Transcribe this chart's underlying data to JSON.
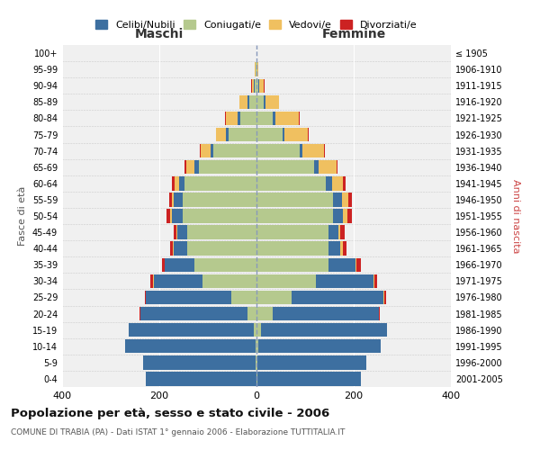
{
  "age_groups": [
    "0-4",
    "5-9",
    "10-14",
    "15-19",
    "20-24",
    "25-29",
    "30-34",
    "35-39",
    "40-44",
    "45-49",
    "50-54",
    "55-59",
    "60-64",
    "65-69",
    "70-74",
    "75-79",
    "80-84",
    "85-89",
    "90-94",
    "95-99",
    "100+"
  ],
  "birth_years": [
    "2001-2005",
    "1996-2000",
    "1991-1995",
    "1986-1990",
    "1981-1985",
    "1976-1980",
    "1971-1975",
    "1966-1970",
    "1961-1965",
    "1956-1960",
    "1951-1955",
    "1946-1950",
    "1941-1945",
    "1936-1940",
    "1931-1935",
    "1926-1930",
    "1921-1925",
    "1916-1920",
    "1911-1915",
    "1906-1910",
    "≤ 1905"
  ],
  "maschi_celibi": [
    228,
    233,
    268,
    258,
    220,
    175,
    100,
    60,
    28,
    20,
    22,
    18,
    12,
    10,
    7,
    5,
    5,
    4,
    2,
    1,
    0
  ],
  "maschi_coniugati": [
    0,
    1,
    2,
    5,
    18,
    52,
    112,
    128,
    143,
    143,
    152,
    152,
    148,
    118,
    88,
    58,
    34,
    14,
    3,
    1,
    0
  ],
  "maschi_vedovi": [
    0,
    0,
    0,
    0,
    1,
    1,
    1,
    1,
    1,
    2,
    3,
    5,
    9,
    17,
    19,
    20,
    24,
    17,
    5,
    1,
    0
  ],
  "maschi_divorziati": [
    0,
    0,
    0,
    0,
    1,
    2,
    5,
    5,
    5,
    5,
    8,
    5,
    5,
    3,
    2,
    1,
    1,
    1,
    1,
    0,
    0
  ],
  "femmine_nubili": [
    213,
    223,
    253,
    258,
    218,
    190,
    118,
    55,
    25,
    20,
    20,
    18,
    12,
    10,
    7,
    5,
    5,
    4,
    2,
    1,
    0
  ],
  "femmine_coniugate": [
    1,
    2,
    3,
    10,
    33,
    72,
    123,
    148,
    148,
    148,
    158,
    158,
    143,
    118,
    88,
    53,
    34,
    14,
    3,
    1,
    0
  ],
  "femmine_vedove": [
    0,
    0,
    0,
    0,
    1,
    1,
    2,
    3,
    4,
    5,
    9,
    13,
    23,
    36,
    43,
    48,
    48,
    28,
    10,
    2,
    0
  ],
  "femmine_divorziate": [
    0,
    0,
    0,
    0,
    1,
    3,
    5,
    8,
    8,
    8,
    10,
    8,
    5,
    3,
    2,
    2,
    1,
    1,
    1,
    0,
    0
  ],
  "colors": {
    "celibi": "#3d6fa0",
    "coniugati": "#b5c98e",
    "vedovi": "#f0c060",
    "divorziati": "#cc2222"
  },
  "title": "Popolazione per età, sesso e stato civile - 2006",
  "subtitle": "COMUNE DI TRABIA (PA) - Dati ISTAT 1° gennaio 2006 - Elaborazione TUTTITALIA.IT",
  "label_maschi": "Maschi",
  "label_femmine": "Femmine",
  "ylabel_left": "Fasce di età",
  "ylabel_right": "Anni di nascita",
  "xlim": 400,
  "legend_labels": [
    "Celibi/Nubili",
    "Coniugati/e",
    "Vedovi/e",
    "Divorziati/e"
  ],
  "background_color": "#ffffff",
  "plot_bg": "#f0f0f0",
  "grid_color": "#cccccc"
}
